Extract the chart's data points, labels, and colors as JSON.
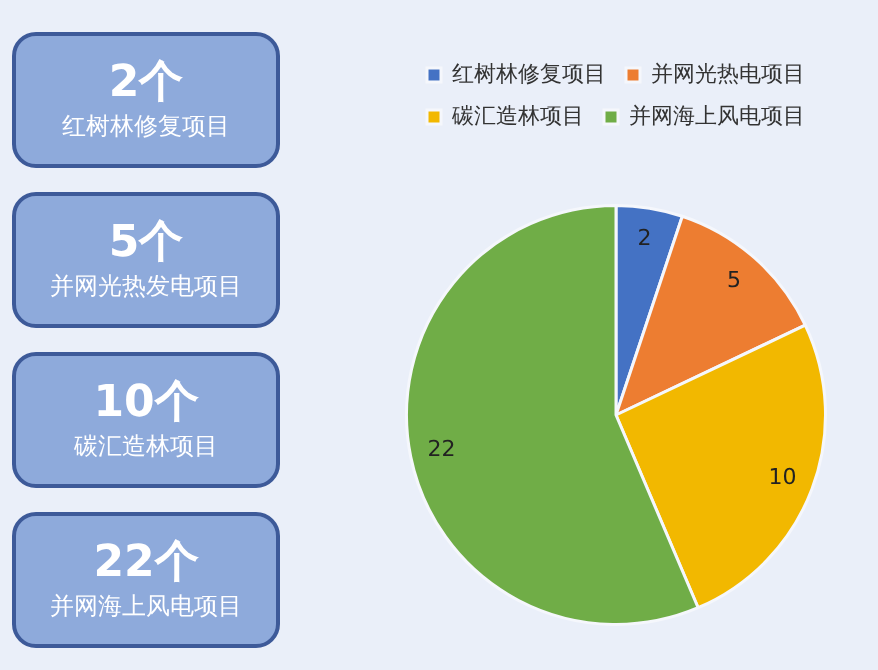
{
  "chart_data": [
    {
      "type": "other",
      "annotations": [
        "2个",
        "红树林修复项目",
        "5个",
        "并网光热发电项目",
        "10个",
        "碳汇造林项目",
        "22个",
        "并网海上风电项目"
      ]
    },
    {
      "type": "pie",
      "categories": [
        "红树林修复项目",
        "并网光热电项目",
        "碳汇造林项目",
        "并网海上风电项目"
      ],
      "values": [
        2,
        5,
        10,
        22
      ],
      "colors": [
        "#4472c4",
        "#ed7d31",
        "#f2b800",
        "#70ad47"
      ],
      "data_labels": true,
      "legend": "top"
    }
  ]
}
